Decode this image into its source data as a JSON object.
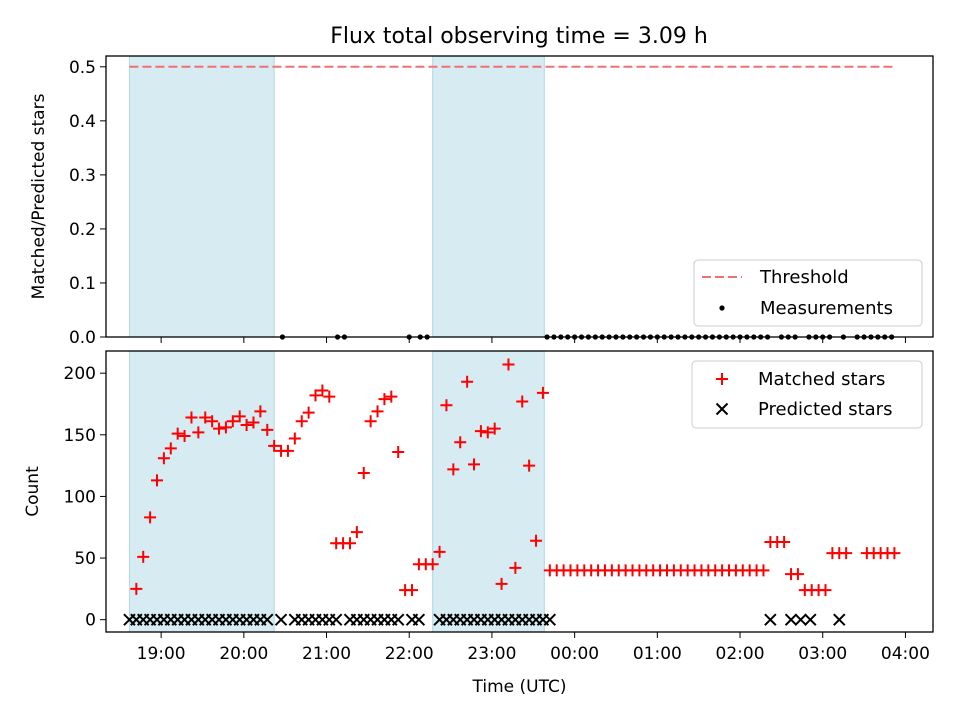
{
  "title": "Flux total observing time = 3.09 h",
  "chart_data": [
    {
      "panel": "top",
      "type": "scatter",
      "title": "Flux total observing time = 3.09 h",
      "xlabel": "",
      "ylabel": "Matched/Predicted stars",
      "xlim": [
        "18:20",
        "04:20"
      ],
      "ylim": [
        0,
        0.52
      ],
      "yticks": [
        0.0,
        0.1,
        0.2,
        0.3,
        0.4,
        0.5
      ],
      "ytick_labels": [
        "0.0",
        "0.1",
        "0.2",
        "0.3",
        "0.4",
        "0.5"
      ],
      "shaded_intervals": [
        [
          "18:37",
          "20:22"
        ],
        [
          "22:17",
          "23:38"
        ]
      ],
      "threshold": {
        "name": "Threshold",
        "value": 0.5,
        "x_range": [
          "18:37",
          "03:53"
        ],
        "color": "#f07070"
      },
      "measurements": {
        "name": "Measurements",
        "color": "#000000",
        "x": [
          "20:28",
          "21:08",
          "21:13",
          "22:00",
          "22:08",
          "22:13",
          "23:40",
          "23:45",
          "23:50",
          "23:55",
          "00:00",
          "00:05",
          "00:10",
          "00:15",
          "00:20",
          "00:25",
          "00:30",
          "00:35",
          "00:40",
          "00:45",
          "00:50",
          "00:55",
          "01:00",
          "01:05",
          "01:10",
          "01:15",
          "01:20",
          "01:25",
          "01:30",
          "01:35",
          "01:40",
          "01:45",
          "01:50",
          "01:55",
          "02:00",
          "02:05",
          "02:10",
          "02:15",
          "02:20",
          "02:30",
          "02:35",
          "02:40",
          "02:50",
          "02:55",
          "03:00",
          "03:05",
          "03:15",
          "03:25",
          "03:30",
          "03:35",
          "03:40",
          "03:45",
          "03:50"
        ],
        "y": [
          0,
          0,
          0,
          0,
          0,
          0,
          0,
          0,
          0,
          0,
          0,
          0,
          0,
          0,
          0,
          0,
          0,
          0,
          0,
          0,
          0,
          0,
          0,
          0,
          0,
          0,
          0,
          0,
          0,
          0,
          0,
          0,
          0,
          0,
          0,
          0,
          0,
          0,
          0,
          0,
          0,
          0,
          0,
          0,
          0,
          0,
          0,
          0,
          0,
          0,
          0,
          0,
          0
        ]
      },
      "legend": {
        "placement": "lower-right",
        "entries": [
          "Threshold",
          "Measurements"
        ]
      }
    },
    {
      "panel": "bottom",
      "type": "scatter",
      "xlabel": "Time (UTC)",
      "ylabel": "Count",
      "xlim": [
        "18:20",
        "04:20"
      ],
      "ylim": [
        -10,
        218
      ],
      "yticks": [
        0,
        50,
        100,
        150,
        200
      ],
      "ytick_labels": [
        "0",
        "50",
        "100",
        "150",
        "200"
      ],
      "xtick_labels": [
        "19:00",
        "20:00",
        "21:00",
        "22:00",
        "23:00",
        "00:00",
        "01:00",
        "02:00",
        "03:00",
        "04:00"
      ],
      "shaded_intervals": [
        [
          "18:37",
          "20:22"
        ],
        [
          "22:17",
          "23:38"
        ]
      ],
      "series": [
        {
          "name": "Matched stars",
          "marker": "+",
          "color": "#ff0000",
          "x": [
            "18:42",
            "18:47",
            "18:52",
            "18:57",
            "19:02",
            "19:07",
            "19:12",
            "19:17",
            "19:22",
            "19:27",
            "19:32",
            "19:37",
            "19:42",
            "19:47",
            "19:52",
            "19:57",
            "20:02",
            "20:07",
            "20:12",
            "20:17",
            "20:22",
            "20:27",
            "20:32",
            "20:37",
            "20:42",
            "20:47",
            "20:52",
            "20:57",
            "21:02",
            "21:07",
            "21:12",
            "21:17",
            "21:22",
            "21:27",
            "21:32",
            "21:37",
            "21:42",
            "21:47",
            "21:52",
            "21:57",
            "22:02",
            "22:07",
            "22:12",
            "22:17",
            "22:22",
            "22:27",
            "22:32",
            "22:37",
            "22:42",
            "22:47",
            "22:52",
            "22:57",
            "23:02",
            "23:07",
            "23:12",
            "23:17",
            "23:22",
            "23:27",
            "23:32",
            "23:37",
            "23:42",
            "23:47",
            "23:52",
            "23:57",
            "00:02",
            "00:07",
            "00:12",
            "00:17",
            "00:22",
            "00:27",
            "00:32",
            "00:37",
            "00:42",
            "00:47",
            "00:52",
            "00:57",
            "01:02",
            "01:07",
            "01:12",
            "01:17",
            "01:22",
            "01:27",
            "01:32",
            "01:37",
            "01:42",
            "01:47",
            "01:52",
            "01:57",
            "02:02",
            "02:07",
            "02:12",
            "02:17",
            "02:22",
            "02:27",
            "02:32",
            "02:37",
            "02:42",
            "02:47",
            "02:52",
            "02:57",
            "03:02",
            "03:07",
            "03:12",
            "03:17",
            "03:32",
            "03:37",
            "03:42",
            "03:47",
            "03:52"
          ],
          "y": [
            25,
            51,
            83,
            113,
            131,
            139,
            151,
            149,
            164,
            152,
            164,
            161,
            155,
            156,
            161,
            165,
            158,
            160,
            169,
            154,
            141,
            137,
            137,
            147,
            161,
            168,
            182,
            186,
            181,
            62,
            62,
            62,
            71,
            119,
            161,
            169,
            179,
            181,
            136,
            24,
            24,
            45,
            45,
            45,
            55,
            174,
            122,
            144,
            193,
            126,
            153,
            152,
            155,
            29,
            207,
            42,
            177,
            125,
            64,
            184,
            40,
            40,
            40,
            40,
            40,
            40,
            40,
            40,
            40,
            40,
            40,
            40,
            40,
            40,
            40,
            40,
            40,
            40,
            40,
            40,
            40,
            40,
            40,
            40,
            40,
            40,
            40,
            40,
            40,
            40,
            40,
            40,
            63,
            63,
            63,
            37,
            37,
            24,
            24,
            24,
            24,
            54,
            54,
            54,
            54,
            54,
            54,
            54,
            54
          ]
        },
        {
          "name": "Predicted stars",
          "marker": "x",
          "color": "#000000",
          "x": [
            "18:37",
            "18:42",
            "18:47",
            "18:52",
            "18:57",
            "19:02",
            "19:07",
            "19:12",
            "19:17",
            "19:22",
            "19:27",
            "19:32",
            "19:37",
            "19:42",
            "19:47",
            "19:52",
            "19:57",
            "20:02",
            "20:07",
            "20:12",
            "20:17",
            "20:27",
            "20:37",
            "20:42",
            "20:47",
            "20:52",
            "20:57",
            "21:02",
            "21:07",
            "21:17",
            "21:22",
            "21:27",
            "21:32",
            "21:37",
            "21:42",
            "21:47",
            "21:52",
            "22:02",
            "22:07",
            "22:22",
            "22:27",
            "22:32",
            "22:37",
            "22:42",
            "22:47",
            "22:52",
            "22:57",
            "23:02",
            "23:07",
            "23:12",
            "23:17",
            "23:22",
            "23:27",
            "23:32",
            "23:37",
            "23:42",
            "02:22",
            "02:37",
            "02:44",
            "02:51",
            "03:12"
          ],
          "y": [
            0,
            0,
            0,
            0,
            0,
            0,
            0,
            0,
            0,
            0,
            0,
            0,
            0,
            0,
            0,
            0,
            0,
            0,
            0,
            0,
            0,
            0,
            0,
            0,
            0,
            0,
            0,
            0,
            0,
            0,
            0,
            0,
            0,
            0,
            0,
            0,
            0,
            0,
            0,
            0,
            0,
            0,
            0,
            0,
            0,
            0,
            0,
            0,
            0,
            0,
            0,
            0,
            0,
            0,
            0,
            0,
            0,
            0,
            0,
            0,
            0
          ]
        }
      ],
      "legend": {
        "placement": "upper-right",
        "entries": [
          "Matched stars",
          "Predicted stars"
        ]
      }
    }
  ]
}
